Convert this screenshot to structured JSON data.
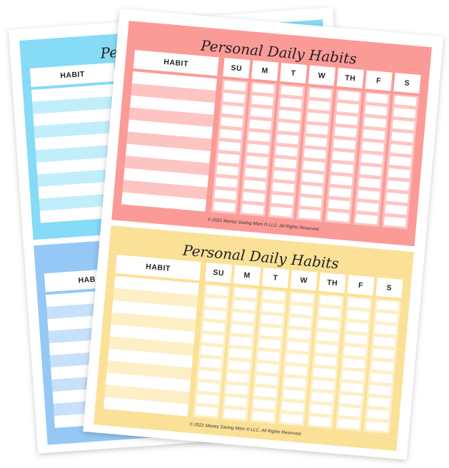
{
  "back_sheet": {
    "panels": [
      {
        "title": "Pe",
        "habit_header": "HABIT"
      },
      {
        "habit_header": "HAB"
      }
    ]
  },
  "front_sheet": {
    "panels": [
      {
        "title": "Personal Daily Habits",
        "habit_header": "HABIT",
        "days": [
          "SU",
          "M",
          "T",
          "W",
          "TH",
          "F",
          "S"
        ],
        "footer": "© 2021 Money Saving Mom ® LLC. All Rights Reserved."
      },
      {
        "title": "Personal Daily Habits",
        "habit_header": "HABIT",
        "days": [
          "SU",
          "M",
          "T",
          "W",
          "TH",
          "F",
          "S"
        ],
        "footer": "© 2021 Money Saving Mom ® LLC. All Rights Reserved."
      }
    ]
  }
}
